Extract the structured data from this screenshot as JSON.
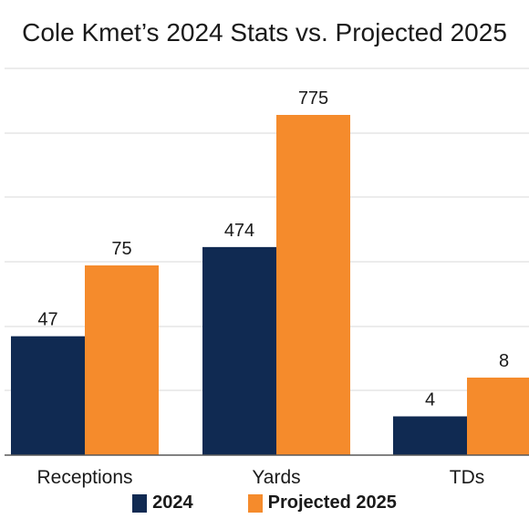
{
  "chart_data": {
    "type": "bar",
    "title": "Cole Kmet’s 2024 Stats vs. Projected 2025",
    "categories": [
      "Receptions",
      "Yards",
      "TDs"
    ],
    "series": [
      {
        "name": "2024",
        "values": [
          47,
          474,
          4
        ],
        "labels": [
          "47",
          "474",
          "4"
        ],
        "color": "#102a52"
      },
      {
        "name": "Projected 2025",
        "values": [
          75,
          775,
          8
        ],
        "labels": [
          "75",
          "775",
          "8"
        ],
        "color": "#f58b2c"
      }
    ],
    "grid": true,
    "legend_position": "bottom"
  }
}
